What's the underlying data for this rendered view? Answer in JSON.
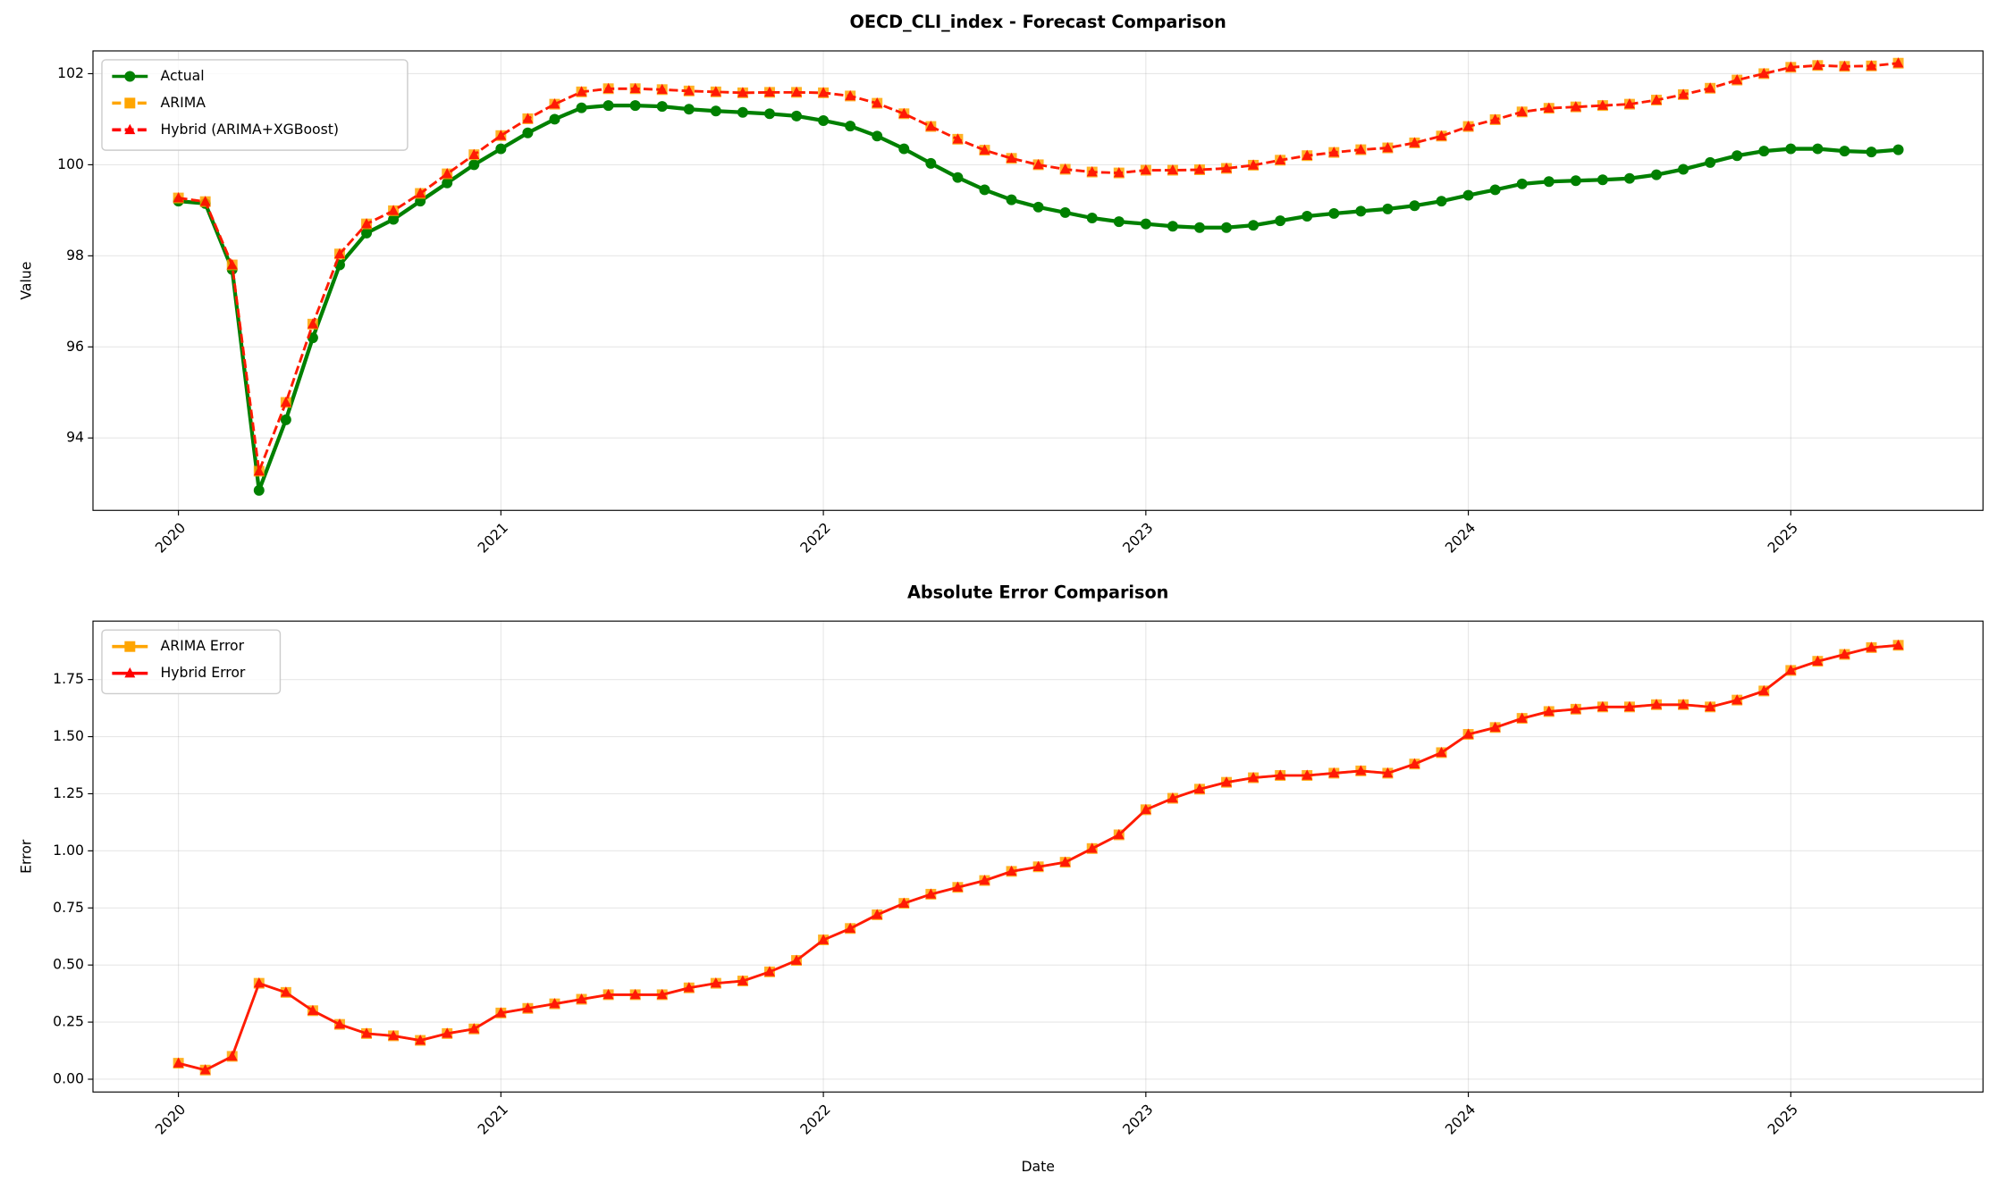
{
  "chart_data": [
    {
      "type": "line",
      "title": "OECD_CLI_index - Forecast Comparison",
      "y_label": "Value",
      "x": [
        "2020-01",
        "2020-02",
        "2020-03",
        "2020-04",
        "2020-05",
        "2020-06",
        "2020-07",
        "2020-08",
        "2020-09",
        "2020-10",
        "2020-11",
        "2020-12",
        "2021-01",
        "2021-02",
        "2021-03",
        "2021-04",
        "2021-05",
        "2021-06",
        "2021-07",
        "2021-08",
        "2021-09",
        "2021-10",
        "2021-11",
        "2021-12",
        "2022-01",
        "2022-02",
        "2022-03",
        "2022-04",
        "2022-05",
        "2022-06",
        "2022-07",
        "2022-08",
        "2022-09",
        "2022-10",
        "2022-11",
        "2022-12",
        "2023-01",
        "2023-02",
        "2023-03",
        "2023-04",
        "2023-05",
        "2023-06",
        "2023-07",
        "2023-08",
        "2023-09",
        "2023-10",
        "2023-11",
        "2023-12",
        "2024-01",
        "2024-02",
        "2024-03",
        "2024-04",
        "2024-05",
        "2024-06",
        "2024-07",
        "2024-08",
        "2024-09",
        "2024-10",
        "2024-11",
        "2024-12",
        "2025-01",
        "2025-02",
        "2025-03",
        "2025-04",
        "2025-05"
      ],
      "xlim": [
        2019.735,
        2025.596
      ],
      "xticks": [
        2020,
        2021,
        2022,
        2023,
        2024,
        2025
      ],
      "ylim": [
        92.41,
        102.5
      ],
      "yticks": [
        94,
        96,
        98,
        100,
        102
      ],
      "grid": true,
      "legend": "upper left",
      "series": [
        {
          "name": "Actual",
          "color": "#008000",
          "marker": "circle",
          "linestyle": "solid",
          "values": [
            99.2,
            99.15,
            97.7,
            92.85,
            94.4,
            96.2,
            97.8,
            98.5,
            98.8,
            99.2,
            99.6,
            100.0,
            100.35,
            100.7,
            101.0,
            101.25,
            101.3,
            101.3,
            101.28,
            101.22,
            101.18,
            101.15,
            101.12,
            101.07,
            100.97,
            100.85,
            100.63,
            100.35,
            100.03,
            99.72,
            99.45,
            99.23,
            99.07,
            98.95,
            98.83,
            98.75,
            98.7,
            98.65,
            98.62,
            98.62,
            98.67,
            98.77,
            98.87,
            98.93,
            98.98,
            99.03,
            99.1,
            99.2,
            99.33,
            99.45,
            99.58,
            99.63,
            99.65,
            99.67,
            99.7,
            99.78,
            99.9,
            100.05,
            100.2,
            100.3,
            100.35,
            100.35,
            100.3,
            100.28,
            100.33
          ]
        },
        {
          "name": "ARIMA",
          "color": "#ffa500",
          "marker": "square",
          "linestyle": "dashed",
          "values": [
            99.27,
            99.19,
            97.8,
            93.27,
            94.78,
            96.5,
            98.04,
            98.7,
            98.99,
            99.37,
            99.8,
            100.22,
            100.64,
            101.01,
            101.33,
            101.6,
            101.67,
            101.67,
            101.65,
            101.62,
            101.6,
            101.58,
            101.59,
            101.59,
            101.58,
            101.51,
            101.35,
            101.12,
            100.84,
            100.56,
            100.32,
            100.14,
            100.0,
            99.9,
            99.84,
            99.82,
            99.88,
            99.88,
            99.89,
            99.92,
            99.99,
            100.1,
            100.2,
            100.27,
            100.33,
            100.37,
            100.48,
            100.63,
            100.84,
            100.99,
            101.16,
            101.24,
            101.27,
            101.3,
            101.33,
            101.42,
            101.54,
            101.68,
            101.86,
            102.0,
            102.14,
            102.18,
            102.16,
            102.17,
            102.23
          ]
        },
        {
          "name": "Hybrid (ARIMA+XGBoost)",
          "color": "#ff0000",
          "marker": "triangle",
          "linestyle": "dashed",
          "values": [
            99.27,
            99.19,
            97.8,
            93.27,
            94.78,
            96.5,
            98.04,
            98.7,
            98.99,
            99.37,
            99.8,
            100.22,
            100.64,
            101.01,
            101.33,
            101.6,
            101.67,
            101.67,
            101.65,
            101.62,
            101.6,
            101.58,
            101.59,
            101.59,
            101.58,
            101.51,
            101.35,
            101.12,
            100.84,
            100.56,
            100.32,
            100.14,
            100.0,
            99.9,
            99.84,
            99.82,
            99.88,
            99.88,
            99.89,
            99.92,
            99.99,
            100.1,
            100.2,
            100.27,
            100.33,
            100.37,
            100.48,
            100.63,
            100.84,
            100.99,
            101.16,
            101.24,
            101.27,
            101.3,
            101.33,
            101.42,
            101.54,
            101.68,
            101.86,
            102.0,
            102.14,
            102.18,
            102.16,
            102.17,
            102.23
          ]
        }
      ]
    },
    {
      "type": "line",
      "title": "Absolute Error Comparison",
      "x_label": "Date",
      "y_label": "Error",
      "x": [
        "2020-01",
        "2020-02",
        "2020-03",
        "2020-04",
        "2020-05",
        "2020-06",
        "2020-07",
        "2020-08",
        "2020-09",
        "2020-10",
        "2020-11",
        "2020-12",
        "2021-01",
        "2021-02",
        "2021-03",
        "2021-04",
        "2021-05",
        "2021-06",
        "2021-07",
        "2021-08",
        "2021-09",
        "2021-10",
        "2021-11",
        "2021-12",
        "2022-01",
        "2022-02",
        "2022-03",
        "2022-04",
        "2022-05",
        "2022-06",
        "2022-07",
        "2022-08",
        "2022-09",
        "2022-10",
        "2022-11",
        "2022-12",
        "2023-01",
        "2023-02",
        "2023-03",
        "2023-04",
        "2023-05",
        "2023-06",
        "2023-07",
        "2023-08",
        "2023-09",
        "2023-10",
        "2023-11",
        "2023-12",
        "2024-01",
        "2024-02",
        "2024-03",
        "2024-04",
        "2024-05",
        "2024-06",
        "2024-07",
        "2024-08",
        "2024-09",
        "2024-10",
        "2024-11",
        "2024-12",
        "2025-01",
        "2025-02",
        "2025-03",
        "2025-04",
        "2025-05"
      ],
      "xlim": [
        2019.735,
        2025.596
      ],
      "xticks": [
        2020,
        2021,
        2022,
        2023,
        2024,
        2025
      ],
      "ylim": [
        -0.056,
        2.006
      ],
      "yticks": [
        {
          "value": 0,
          "label": "0.00"
        },
        {
          "value": 0.25,
          "label": "0.25"
        },
        {
          "value": 0.5,
          "label": "0.50"
        },
        {
          "value": 0.75,
          "label": "0.75"
        },
        {
          "value": 1,
          "label": "1.00"
        },
        {
          "value": 1.25,
          "label": "1.25"
        },
        {
          "value": 1.5,
          "label": "1.50"
        },
        {
          "value": 1.75,
          "label": "1.75"
        }
      ],
      "grid": true,
      "legend": "upper left",
      "series": [
        {
          "name": "ARIMA Error",
          "color": "#ffa500",
          "marker": "square",
          "linestyle": "solid",
          "values": [
            0.07,
            0.04,
            0.1,
            0.42,
            0.38,
            0.3,
            0.24,
            0.2,
            0.19,
            0.17,
            0.2,
            0.22,
            0.29,
            0.31,
            0.33,
            0.35,
            0.37,
            0.37,
            0.37,
            0.4,
            0.42,
            0.43,
            0.47,
            0.52,
            0.61,
            0.66,
            0.72,
            0.77,
            0.81,
            0.84,
            0.87,
            0.91,
            0.93,
            0.95,
            1.01,
            1.07,
            1.18,
            1.23,
            1.27,
            1.3,
            1.32,
            1.33,
            1.33,
            1.34,
            1.35,
            1.34,
            1.38,
            1.43,
            1.51,
            1.54,
            1.58,
            1.61,
            1.62,
            1.63,
            1.63,
            1.64,
            1.64,
            1.63,
            1.66,
            1.7,
            1.79,
            1.83,
            1.86,
            1.89,
            1.9
          ]
        },
        {
          "name": "Hybrid Error",
          "color": "#ff0000",
          "marker": "triangle",
          "linestyle": "solid",
          "values": [
            0.07,
            0.04,
            0.1,
            0.42,
            0.38,
            0.3,
            0.24,
            0.2,
            0.19,
            0.17,
            0.2,
            0.22,
            0.29,
            0.31,
            0.33,
            0.35,
            0.37,
            0.37,
            0.37,
            0.4,
            0.42,
            0.43,
            0.47,
            0.52,
            0.61,
            0.66,
            0.72,
            0.77,
            0.81,
            0.84,
            0.87,
            0.91,
            0.93,
            0.95,
            1.01,
            1.07,
            1.18,
            1.23,
            1.27,
            1.3,
            1.32,
            1.33,
            1.33,
            1.34,
            1.35,
            1.34,
            1.38,
            1.43,
            1.51,
            1.54,
            1.58,
            1.61,
            1.62,
            1.63,
            1.63,
            1.64,
            1.64,
            1.63,
            1.66,
            1.7,
            1.79,
            1.83,
            1.86,
            1.89,
            1.9
          ]
        }
      ]
    }
  ]
}
